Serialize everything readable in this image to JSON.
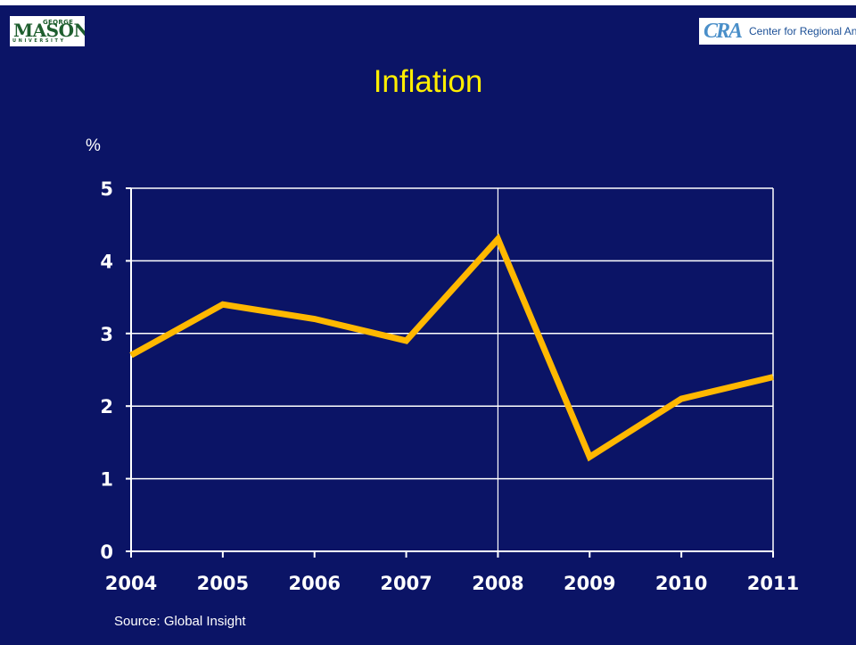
{
  "logos": {
    "mason": {
      "george": "GEORGE",
      "name": "MASON",
      "university": "UNIVERSITY"
    },
    "cra": {
      "mark": "CRA",
      "text": "Center for Regional Analys"
    }
  },
  "colors": {
    "background": "#0b1466",
    "title": "#ffee00",
    "line": "#ffb800",
    "grid": "#ffffff",
    "text": "#ffffff"
  },
  "source": "Source: Global Insight",
  "chart_data": {
    "type": "line",
    "title": "Inflation",
    "ylabel": "%",
    "xlabel": "",
    "categories": [
      "2004",
      "2005",
      "2006",
      "2007",
      "2008",
      "2009",
      "2010",
      "2011"
    ],
    "series": [
      {
        "values": [
          2.7,
          3.4,
          3.2,
          2.9,
          4.3,
          1.3,
          2.1,
          2.4
        ]
      }
    ],
    "ylim": [
      0,
      5
    ],
    "yticks": [
      "0",
      "1",
      "2",
      "3",
      "4",
      "5"
    ],
    "grid": true,
    "legend": "none"
  }
}
